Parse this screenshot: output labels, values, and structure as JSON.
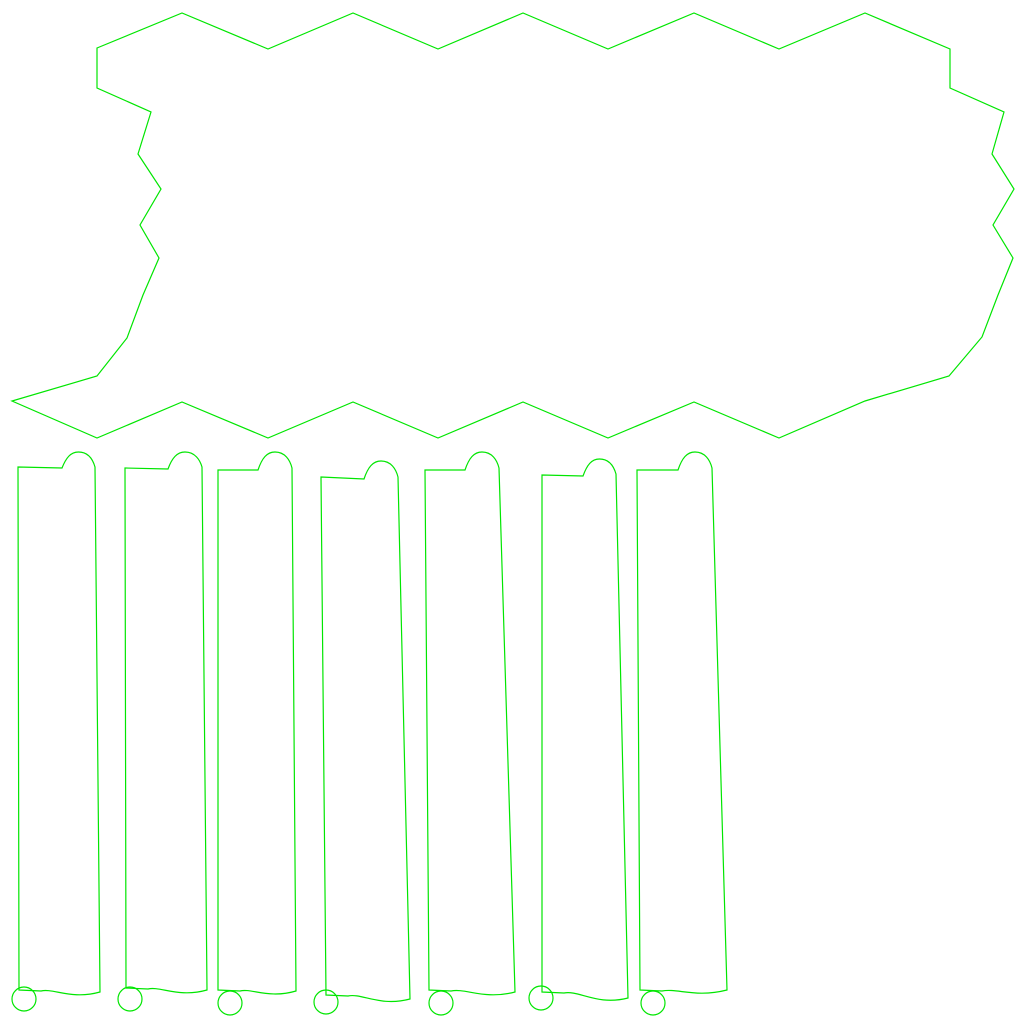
{
  "colors": {
    "background": "#ffffff",
    "outline": "#00e600"
  },
  "shapes": {
    "upper_shape_name": "",
    "strip_count": 7
  }
}
